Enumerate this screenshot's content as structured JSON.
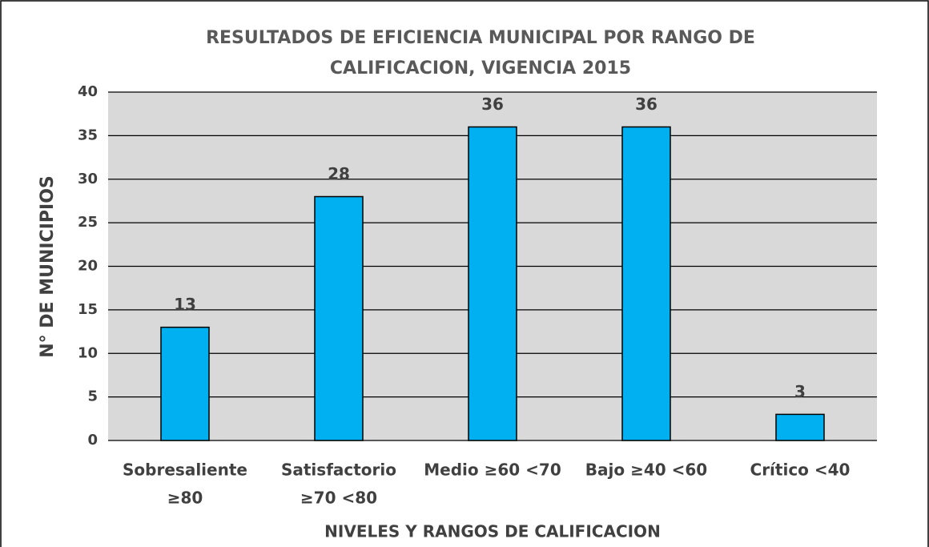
{
  "chart_data": {
    "type": "bar",
    "title": [
      "RESULTADOS DE EFICIENCIA MUNICIPAL POR RANGO DE",
      "CALIFICACION, VIGENCIA 2015"
    ],
    "x_label": "NIVELES Y RANGOS DE CALIFICACION",
    "y_label": "N° DE MUNICIPIOS",
    "categories": [
      [
        "Sobresaliente",
        "≥80"
      ],
      [
        "Satisfactorio",
        "≥70 <80"
      ],
      [
        "Medio ≥60 <70"
      ],
      [
        "Bajo ≥40 <60"
      ],
      [
        "Crítico <40"
      ]
    ],
    "values": [
      13,
      28,
      36,
      36,
      3
    ],
    "color": "#00b0f0",
    "ylim": [
      0,
      40
    ],
    "yticks": [
      0,
      5,
      10,
      15,
      20,
      25,
      30,
      35,
      40
    ],
    "grid": true
  }
}
